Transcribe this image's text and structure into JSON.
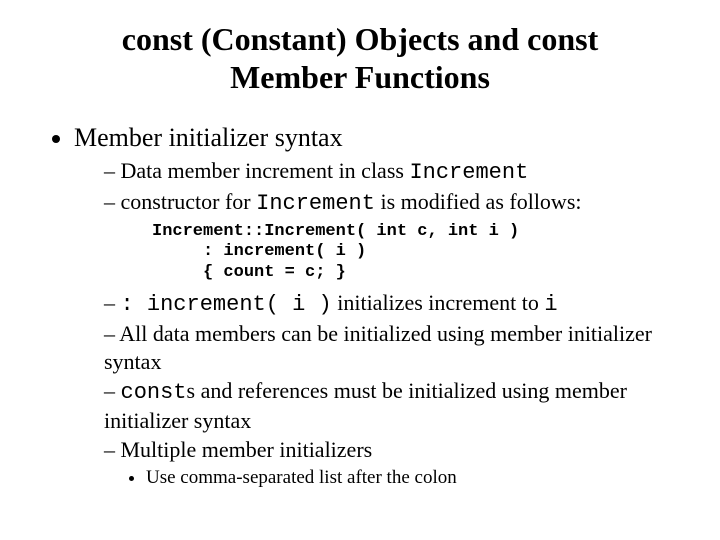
{
  "title": "const (Constant) Objects and const Member Functions",
  "bullet1": "Member initializer syntax",
  "sub1_prefix": "Data member increment in class ",
  "sub1_code": "Increment",
  "sub2_prefix": "constructor for ",
  "sub2_code": "Increment",
  "sub2_suffix": " is modified as follows:",
  "code_line1": "Increment::Increment( int c, int i )",
  "code_line2": "     : increment( i )",
  "code_line3": "     { count = c; }",
  "sub3_code": ": increment( i )",
  "sub3_mid": " initializes increment to ",
  "sub3_code2": "i",
  "sub4": "All data members can be initialized using member initializer syntax",
  "sub5_code": "const",
  "sub5_suffix": "s and references must be initialized using member initializer syntax",
  "sub6": "Multiple member initializers",
  "sub6_1": "Use comma-separated list after the colon",
  "colors": {
    "background": "#ffffff",
    "text": "#000000"
  },
  "typography": {
    "body_font": "Times New Roman",
    "code_font": "Courier New",
    "title_size_pt": 32,
    "level1_size_pt": 26,
    "level2_size_pt": 22,
    "level3_size_pt": 19,
    "code_block_size_pt": 17
  }
}
